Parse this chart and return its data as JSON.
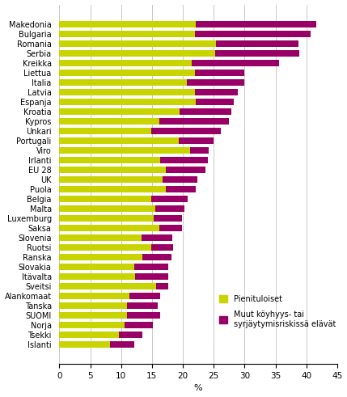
{
  "countries": [
    "Makedonia",
    "Bulgaria",
    "Romania",
    "Serbia",
    "Kreikka",
    "Liettua",
    "Italia",
    "Latvia",
    "Espanja",
    "Kroatia",
    "Kypros",
    "Unkari",
    "Portugali",
    "Viro",
    "Irlanti",
    "EU 28",
    "UK",
    "Puola",
    "Belgia",
    "Malta",
    "Luxemburg",
    "Saksa",
    "Slovenia",
    "Ruotsi",
    "Ranska",
    "Slovakia",
    "Itävalta",
    "Sveitsi",
    "Alankomaat",
    "Tanska",
    "SUOMI",
    "Norja",
    "Tsekki",
    "Islanti"
  ],
  "pienituloiset": [
    22.1,
    22.0,
    25.4,
    25.3,
    21.4,
    21.9,
    20.6,
    21.9,
    22.1,
    19.5,
    16.2,
    14.9,
    19.4,
    21.2,
    16.3,
    17.3,
    16.7,
    17.3,
    14.9,
    15.6,
    15.3,
    16.2,
    13.3,
    14.9,
    13.5,
    12.1,
    12.3,
    15.7,
    11.4,
    10.9,
    10.9,
    10.6,
    9.6,
    8.2
  ],
  "muut": [
    19.5,
    18.7,
    13.3,
    13.5,
    14.2,
    8.1,
    9.4,
    7.0,
    6.1,
    8.3,
    11.2,
    11.2,
    5.6,
    3.0,
    7.8,
    6.4,
    5.6,
    4.8,
    5.9,
    4.7,
    4.5,
    3.6,
    5.0,
    3.5,
    4.6,
    5.6,
    5.3,
    2.0,
    4.9,
    5.0,
    5.4,
    4.5,
    3.8,
    3.9
  ],
  "color_pienituloiset": "#c8d400",
  "color_muut": "#990066",
  "xlabel": "%",
  "xlim": [
    0,
    45
  ],
  "xticks": [
    0,
    5,
    10,
    15,
    20,
    25,
    30,
    35,
    40,
    45
  ],
  "legend_label1": "Pienituloiset",
  "legend_label2": "Muut köyhyys- tai\nsyrjäytymisriskissä elävät",
  "grid_color": "#c8c8c8",
  "bar_height": 0.7
}
